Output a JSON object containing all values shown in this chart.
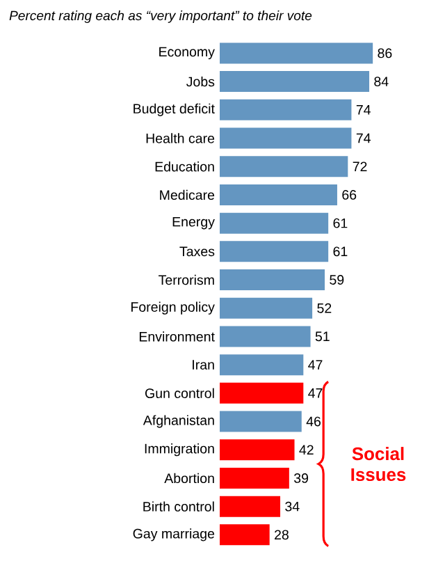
{
  "chart_data": {
    "type": "bar",
    "orientation": "horizontal",
    "title": "Percent rating each as “very important” to their vote",
    "categories": [
      "Economy",
      "Jobs",
      "Budget deficit",
      "Health care",
      "Education",
      "Medicare",
      "Energy",
      "Taxes",
      "Terrorism",
      "Foreign policy",
      "Environment",
      "Iran",
      "Gun control",
      "Afghanistan",
      "Immigration",
      "Abortion",
      "Birth control",
      "Gay marriage"
    ],
    "values": [
      86,
      84,
      74,
      74,
      72,
      66,
      61,
      61,
      59,
      52,
      51,
      47,
      47,
      46,
      42,
      39,
      34,
      28
    ],
    "colors": [
      "#6496c1",
      "#6496c1",
      "#6496c1",
      "#6496c1",
      "#6496c1",
      "#6496c1",
      "#6496c1",
      "#6496c1",
      "#6496c1",
      "#6496c1",
      "#6496c1",
      "#6496c1",
      "#ff0000",
      "#6496c1",
      "#ff0000",
      "#ff0000",
      "#ff0000",
      "#ff0000"
    ],
    "data_labels": true,
    "annotations": [
      "Social Issues"
    ]
  }
}
